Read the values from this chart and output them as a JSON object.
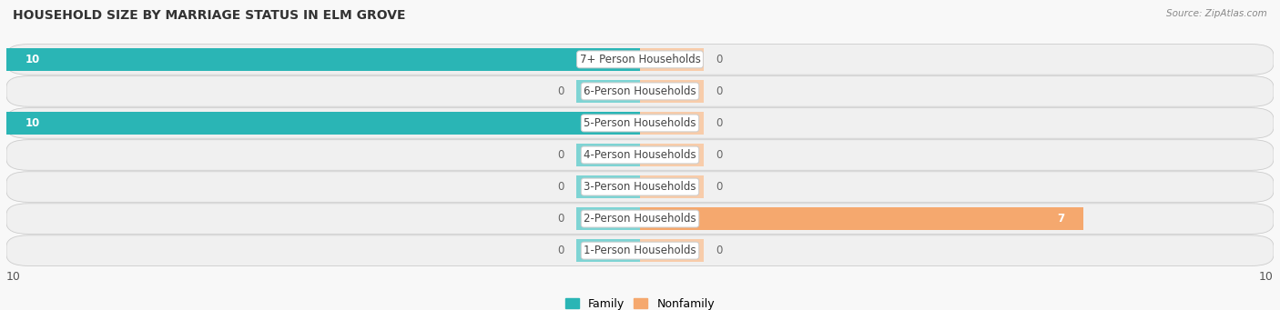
{
  "title": "HOUSEHOLD SIZE BY MARRIAGE STATUS IN ELM GROVE",
  "source": "Source: ZipAtlas.com",
  "categories": [
    "7+ Person Households",
    "6-Person Households",
    "5-Person Households",
    "4-Person Households",
    "3-Person Households",
    "2-Person Households",
    "1-Person Households"
  ],
  "family_values": [
    10,
    0,
    10,
    0,
    0,
    0,
    0
  ],
  "nonfamily_values": [
    0,
    0,
    0,
    0,
    0,
    7,
    0
  ],
  "family_color": "#2ab5b5",
  "family_color_light": "#7ed4d4",
  "nonfamily_color": "#f5a86e",
  "nonfamily_color_light": "#f8ccaa",
  "axis_min": -10,
  "axis_max": 10,
  "stub_size": 1.0,
  "bar_height": 0.72,
  "label_fontsize": 8.5,
  "title_fontsize": 10,
  "value_fontsize": 8.5,
  "row_facecolor": "#f0f0f0",
  "row_edgecolor": "#cccccc",
  "bg_color": "#f8f8f8"
}
